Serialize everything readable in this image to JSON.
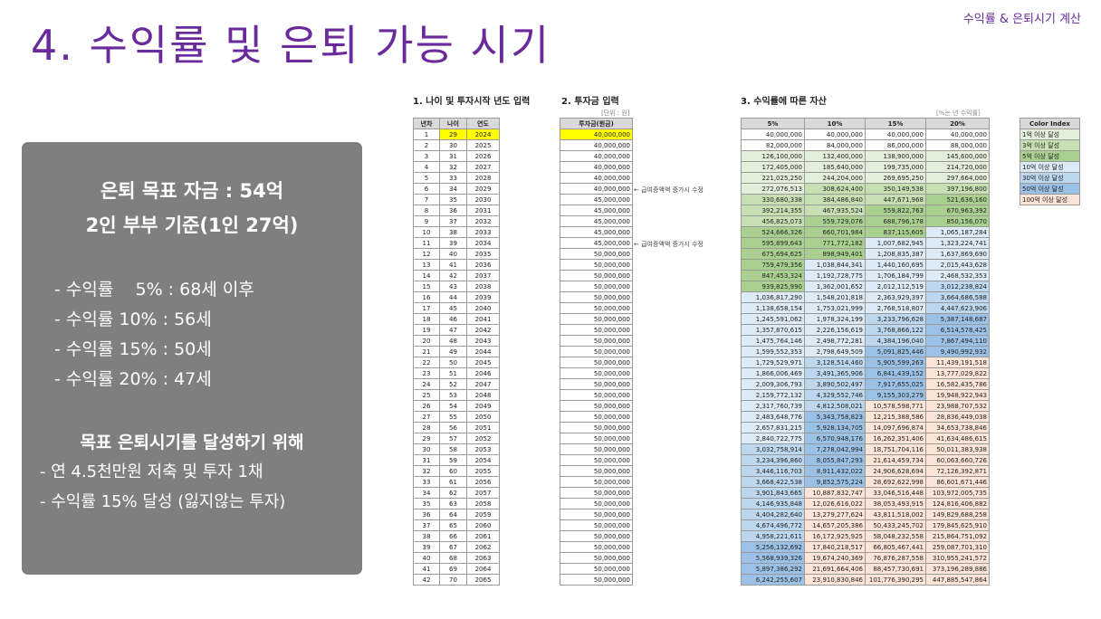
{
  "header": {
    "section_tag": "수익률 & 은퇴시기 계산",
    "title": "4. 수익률 및 은퇴 가능 시기"
  },
  "summary": {
    "goal_line1": "은퇴 목표 자금 : 54억",
    "goal_line2": "2인 부부 기준(1인 27억)",
    "rates": [
      "- 수익률    5% : 68세 이후",
      "- 수익률 10% : 56세",
      "- 수익률 15% : 50세",
      "- 수익률 20% : 47세"
    ],
    "plan_title": "목표 은퇴시기를 달성하기 위해",
    "plan_items": [
      "- 연 4.5천만원 저축 및 투자 1채",
      "- 수익률 15% 달성 (잃지않는 투자)"
    ]
  },
  "sheet": {
    "section1_title": "1. 나이 및 투자시작 년도 입력",
    "section2_title": "2. 투자금 입력",
    "section3_title": "3. 수익률에 따른 자산",
    "unit_left": "[단위 : 원]",
    "unit_right": "[%는 년 수익률]",
    "notes": [
      "← 급여증액액 증가시 수정",
      "← 급여증액액 증가시 수정"
    ],
    "headers_age": [
      "년차",
      "나이",
      "연도"
    ],
    "header_invest": "투자금(원금)",
    "headers_assets": [
      "5%",
      "10%",
      "15%",
      "20%"
    ],
    "color_index_title": "Color Index",
    "color_index": [
      {
        "label": "1억 이상 달성",
        "color": "#e2efda"
      },
      {
        "label": "3억 이상 달성",
        "color": "#c6e0b4"
      },
      {
        "label": "5억 이상 달성",
        "color": "#a9d08e"
      },
      {
        "label": "10억 이상 달성",
        "color": "#ddebf7"
      },
      {
        "label": "30억 이상 달성",
        "color": "#bdd7ee"
      },
      {
        "label": "50억 이상 달성",
        "color": "#9bc2e6"
      },
      {
        "label": "100억 이상 달성",
        "color": "#fce4d6"
      }
    ],
    "rows": [
      [
        "1",
        "29",
        "2024",
        "40,000,000",
        "40,000,000",
        "40,000,000",
        "40,000,000",
        "40,000,000"
      ],
      [
        "2",
        "30",
        "2025",
        "40,000,000",
        "82,000,000",
        "84,000,000",
        "86,000,000",
        "88,000,000"
      ],
      [
        "3",
        "31",
        "2026",
        "40,000,000",
        "126,100,000",
        "132,400,000",
        "138,900,000",
        "145,600,000"
      ],
      [
        "4",
        "32",
        "2027",
        "40,000,000",
        "172,405,000",
        "185,640,000",
        "199,735,000",
        "214,720,000"
      ],
      [
        "5",
        "33",
        "2028",
        "40,000,000",
        "221,025,250",
        "244,204,000",
        "269,695,250",
        "297,664,000"
      ],
      [
        "6",
        "34",
        "2029",
        "40,000,000",
        "272,076,513",
        "308,624,400",
        "350,149,538",
        "397,196,800"
      ],
      [
        "7",
        "35",
        "2030",
        "45,000,000",
        "330,680,338",
        "384,486,840",
        "447,671,968",
        "521,636,160"
      ],
      [
        "8",
        "36",
        "2031",
        "45,000,000",
        "392,214,355",
        "467,935,524",
        "559,822,763",
        "670,963,392"
      ],
      [
        "9",
        "37",
        "2032",
        "45,000,000",
        "456,825,073",
        "559,729,076",
        "688,796,178",
        "850,156,070"
      ],
      [
        "10",
        "38",
        "2033",
        "45,000,000",
        "524,666,326",
        "660,701,984",
        "837,115,605",
        "1,065,187,284"
      ],
      [
        "11",
        "39",
        "2034",
        "45,000,000",
        "595,899,643",
        "771,772,182",
        "1,007,682,945",
        "1,323,224,741"
      ],
      [
        "12",
        "40",
        "2035",
        "50,000,000",
        "675,694,625",
        "898,949,401",
        "1,208,835,387",
        "1,637,869,690"
      ],
      [
        "13",
        "41",
        "2036",
        "50,000,000",
        "759,479,356",
        "1,038,844,341",
        "1,440,160,695",
        "2,015,443,628"
      ],
      [
        "14",
        "42",
        "2037",
        "50,000,000",
        "847,453,324",
        "1,192,728,775",
        "1,706,184,799",
        "2,468,532,353"
      ],
      [
        "15",
        "43",
        "2038",
        "50,000,000",
        "939,825,990",
        "1,362,001,652",
        "2,012,112,519",
        "3,012,238,824"
      ],
      [
        "16",
        "44",
        "2039",
        "50,000,000",
        "1,036,817,290",
        "1,548,201,818",
        "2,363,929,397",
        "3,664,686,588"
      ],
      [
        "17",
        "45",
        "2040",
        "50,000,000",
        "1,138,658,154",
        "1,753,021,999",
        "2,768,518,807",
        "4,447,623,906"
      ],
      [
        "18",
        "46",
        "2041",
        "50,000,000",
        "1,245,591,062",
        "1,978,324,199",
        "3,233,796,628",
        "5,387,148,687"
      ],
      [
        "19",
        "47",
        "2042",
        "50,000,000",
        "1,357,870,615",
        "2,226,156,619",
        "3,768,866,122",
        "6,514,578,425"
      ],
      [
        "20",
        "48",
        "2043",
        "50,000,000",
        "1,475,764,146",
        "2,498,772,281",
        "4,384,196,040",
        "7,867,494,110"
      ],
      [
        "21",
        "49",
        "2044",
        "50,000,000",
        "1,599,552,353",
        "2,798,649,509",
        "5,091,825,446",
        "9,490,992,932"
      ],
      [
        "22",
        "50",
        "2045",
        "50,000,000",
        "1,729,529,971",
        "3,128,514,460",
        "5,905,599,263",
        "11,439,191,518"
      ],
      [
        "23",
        "51",
        "2046",
        "50,000,000",
        "1,866,006,469",
        "3,491,365,906",
        "6,841,439,152",
        "13,777,029,822"
      ],
      [
        "24",
        "52",
        "2047",
        "50,000,000",
        "2,009,306,793",
        "3,890,502,497",
        "7,917,655,025",
        "16,582,435,786"
      ],
      [
        "25",
        "53",
        "2048",
        "50,000,000",
        "2,159,772,132",
        "4,329,552,746",
        "9,155,303,279",
        "19,948,922,943"
      ],
      [
        "26",
        "54",
        "2049",
        "50,000,000",
        "2,317,760,739",
        "4,812,508,021",
        "10,578,598,771",
        "23,988,707,532"
      ],
      [
        "27",
        "55",
        "2050",
        "50,000,000",
        "2,483,648,776",
        "5,343,758,823",
        "12,215,388,586",
        "28,836,449,038"
      ],
      [
        "28",
        "56",
        "2051",
        "50,000,000",
        "2,657,831,215",
        "5,928,134,705",
        "14,097,696,874",
        "34,653,738,846"
      ],
      [
        "29",
        "57",
        "2052",
        "50,000,000",
        "2,840,722,775",
        "6,570,948,176",
        "16,262,351,406",
        "41,634,486,615"
      ],
      [
        "30",
        "58",
        "2053",
        "50,000,000",
        "3,032,758,914",
        "7,278,042,994",
        "18,751,704,116",
        "50,011,383,938"
      ],
      [
        "31",
        "59",
        "2054",
        "50,000,000",
        "3,234,396,860",
        "8,055,847,293",
        "21,614,459,734",
        "60,063,660,726"
      ],
      [
        "32",
        "60",
        "2055",
        "50,000,000",
        "3,446,116,703",
        "8,911,432,022",
        "24,906,628,694",
        "72,126,392,871"
      ],
      [
        "33",
        "61",
        "2056",
        "50,000,000",
        "3,668,422,538",
        "9,852,575,224",
        "28,692,622,998",
        "86,601,671,446"
      ],
      [
        "34",
        "62",
        "2057",
        "50,000,000",
        "3,901,843,665",
        "10,887,832,747",
        "33,046,516,448",
        "103,972,005,735"
      ],
      [
        "35",
        "63",
        "2058",
        "50,000,000",
        "4,146,935,848",
        "12,026,616,022",
        "38,053,493,915",
        "124,816,406,882"
      ],
      [
        "36",
        "64",
        "2059",
        "50,000,000",
        "4,404,282,640",
        "13,279,277,624",
        "43,811,518,002",
        "149,829,688,258"
      ],
      [
        "37",
        "65",
        "2060",
        "50,000,000",
        "4,674,496,772",
        "14,657,205,386",
        "50,433,245,702",
        "179,845,625,910"
      ],
      [
        "38",
        "66",
        "2061",
        "50,000,000",
        "4,958,221,611",
        "16,172,925,925",
        "58,048,232,558",
        "215,864,751,092"
      ],
      [
        "39",
        "67",
        "2062",
        "50,000,000",
        "5,256,132,692",
        "17,840,218,517",
        "66,805,467,441",
        "259,087,701,310"
      ],
      [
        "40",
        "68",
        "2063",
        "50,000,000",
        "5,568,939,326",
        "19,674,240,369",
        "76,876,287,558",
        "310,955,241,572"
      ],
      [
        "41",
        "69",
        "2064",
        "50,000,000",
        "5,897,386,292",
        "21,691,664,406",
        "88,457,730,691",
        "373,196,289,886"
      ],
      [
        "42",
        "70",
        "2065",
        "50,000,000",
        "6,242,255,607",
        "23,910,830,846",
        "101,776,390,295",
        "447,885,547,864"
      ]
    ]
  }
}
